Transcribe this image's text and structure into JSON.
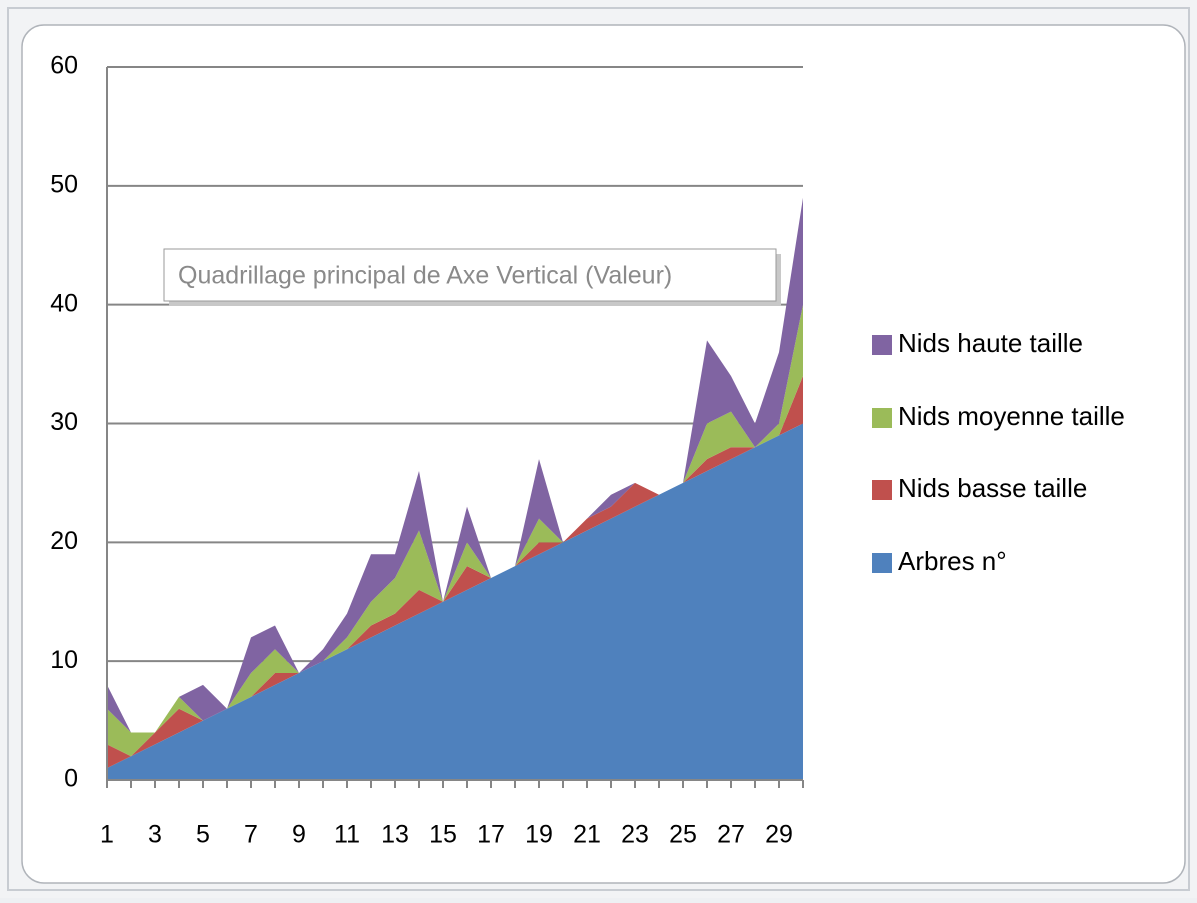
{
  "chart_data": {
    "type": "stacked_area",
    "categories": [
      "1",
      null,
      "3",
      null,
      "5",
      null,
      "7",
      null,
      "9",
      null,
      "11",
      null,
      "13",
      null,
      "15",
      null,
      "17",
      null,
      "19",
      null,
      "21",
      null,
      "23",
      null,
      "25",
      null,
      "27",
      null,
      "29",
      null
    ],
    "series": [
      {
        "name": "Arbres n°",
        "color": "#4f81bd",
        "values": [
          1,
          2,
          3,
          4,
          5,
          6,
          7,
          8,
          9,
          10,
          11,
          12,
          13,
          14,
          15,
          16,
          17,
          18,
          19,
          20,
          21,
          22,
          23,
          24,
          25,
          26,
          27,
          28,
          29,
          30
        ]
      },
      {
        "name": "Nids basse taille",
        "color": "#c0504d",
        "values": [
          2,
          0,
          1,
          2,
          0,
          0,
          0,
          1,
          0,
          0,
          0,
          1,
          1,
          2,
          0,
          2,
          0,
          0,
          1,
          0,
          1,
          1,
          2,
          0,
          0,
          1,
          1,
          0,
          0,
          4
        ]
      },
      {
        "name": "Nids moyenne taille",
        "color": "#9bbb59",
        "values": [
          3,
          2,
          0,
          1,
          0,
          0,
          2,
          2,
          0,
          0,
          1,
          2,
          3,
          5,
          0,
          2,
          0,
          0,
          2,
          0,
          0,
          0,
          0,
          0,
          0,
          3,
          3,
          0,
          1,
          6
        ]
      },
      {
        "name": "Nids haute taille",
        "color": "#8064a2",
        "values": [
          2,
          0,
          0,
          0,
          3,
          0,
          3,
          2,
          0,
          1,
          2,
          4,
          2,
          5,
          0,
          3,
          0,
          0,
          5,
          0,
          0,
          1,
          0,
          0,
          0,
          7,
          3,
          2,
          6,
          9
        ]
      }
    ],
    "ylim": [
      0,
      60
    ],
    "yticks": [
      0,
      10,
      20,
      30,
      40,
      50,
      60
    ],
    "grid": true,
    "legend": "right",
    "tooltip": "Quadrillage principal de Axe Vertical (Valeur)"
  }
}
